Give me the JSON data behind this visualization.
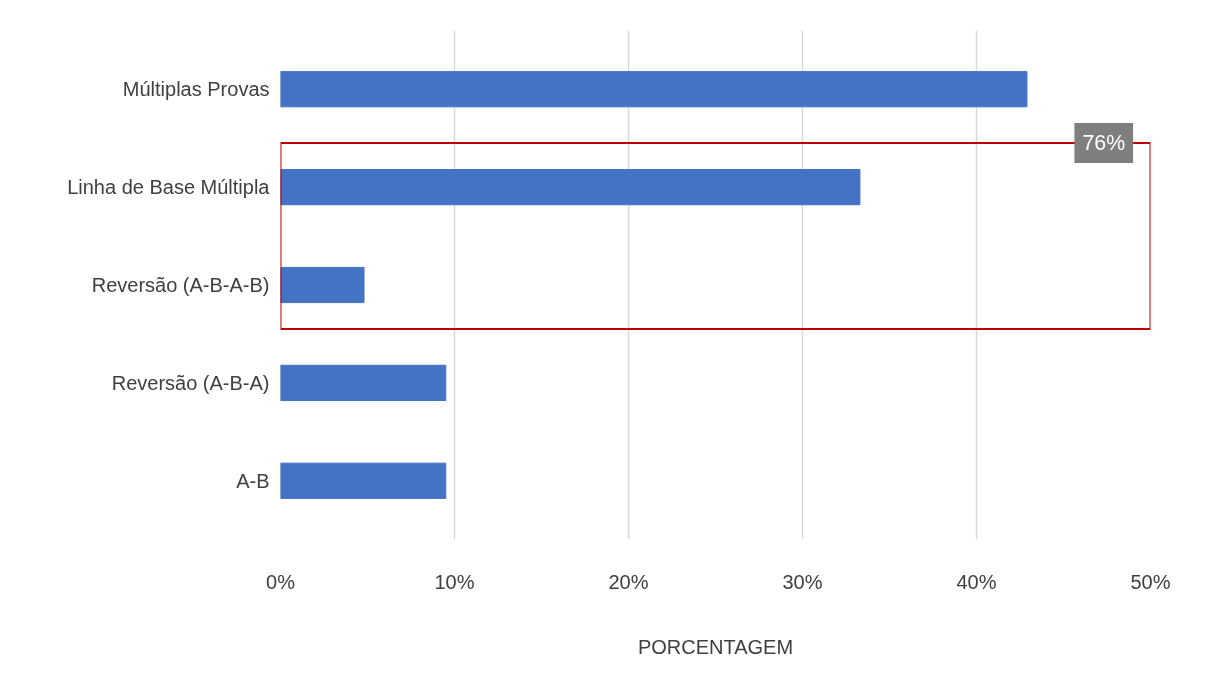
{
  "chart_data": {
    "type": "bar",
    "orientation": "horizontal",
    "categories": [
      "Múltiplas Provas",
      "Linha de Base Múltipla",
      "Reversão (A-B-A-B)",
      "Reversão (A-B-A)",
      "A-B"
    ],
    "values": [
      42.9,
      33.3,
      4.8,
      9.5,
      9.5
    ],
    "color": "#4472c4",
    "xlabel": "PORCENTAGEM",
    "xlim": [
      0,
      50
    ],
    "xticks": [
      {
        "value": 0,
        "label": "0%"
      },
      {
        "value": 10,
        "label": "10%"
      },
      {
        "value": 20,
        "label": "20%"
      },
      {
        "value": 30,
        "label": "30%"
      },
      {
        "value": 40,
        "label": "40%"
      },
      {
        "value": 50,
        "label": "50%"
      }
    ],
    "grid": "x",
    "annotations": [
      "76%"
    ]
  }
}
